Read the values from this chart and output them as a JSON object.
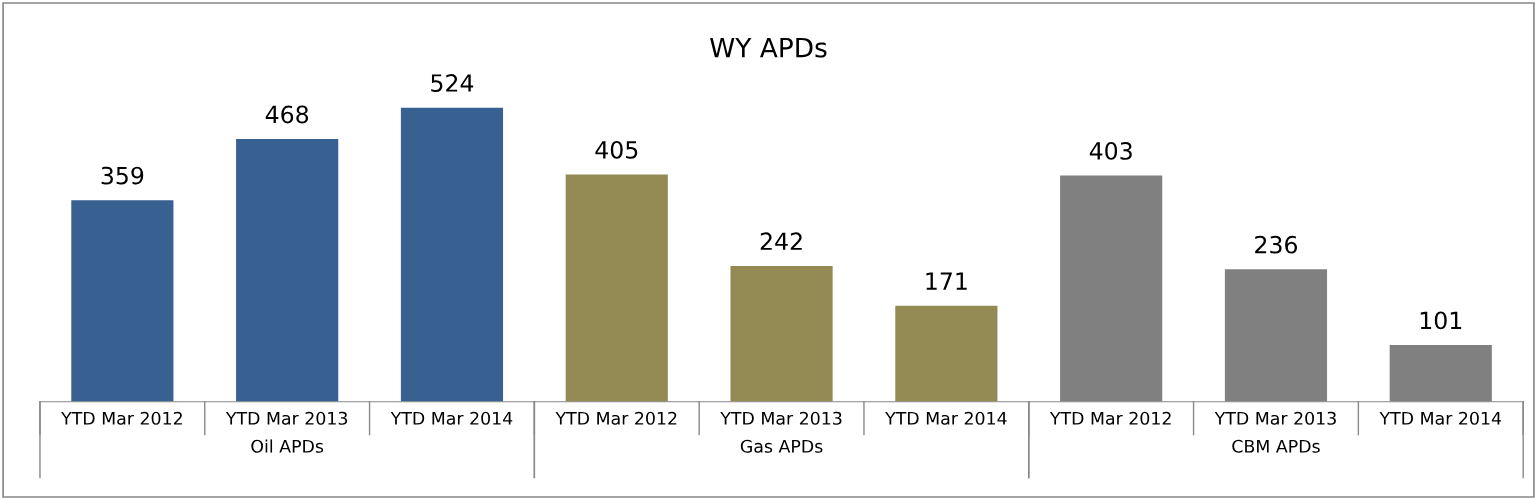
{
  "chart_data": {
    "type": "bar",
    "title": "WY APDs",
    "categories": [
      "YTD Mar 2012",
      "YTD Mar 2013",
      "YTD Mar 2014",
      "YTD Mar 2012",
      "YTD Mar 2013",
      "YTD Mar 2014",
      "YTD Mar 2012",
      "YTD Mar 2013",
      "YTD Mar 2014"
    ],
    "series": [
      {
        "name": "Oil APDs",
        "color": "#386192",
        "values": [
          359,
          468,
          524,
          null,
          null,
          null,
          null,
          null,
          null
        ]
      },
      {
        "name": "Gas APDs",
        "color": "#948b54",
        "values": [
          null,
          null,
          null,
          405,
          242,
          171,
          null,
          null,
          null
        ]
      },
      {
        "name": "CBM APDs",
        "color": "#808080",
        "values": [
          null,
          null,
          null,
          null,
          null,
          null,
          403,
          236,
          101
        ]
      }
    ],
    "data_labels": true
  }
}
